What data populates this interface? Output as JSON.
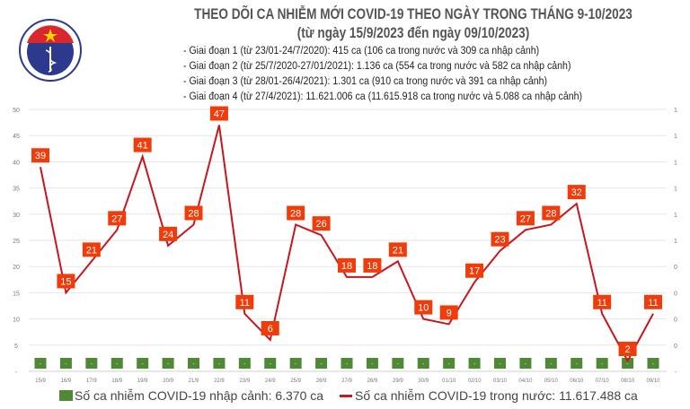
{
  "header": {
    "title": "THEO DÕI CA NHIỄM MỚI COVID-19 THEO NGÀY TRONG THÁNG 9-10/2023",
    "subtitle": "(từ ngày 15/9/2023 đến ngày 09/10/2023)",
    "notes": [
      "- Giai đoạn 1 (từ 23/01-24/7/2020): 415 ca (106 ca trong nước và 309 ca nhập cảnh)",
      "- Giai đoạn 2 (từ 25/7/2020-27/01/2021): 1.136 ca (554 ca trong nước và 582 ca nhập cảnh)",
      "- Giai đoạn 3 (từ 28/01-26/4/2021): 1.301 ca (910 ca trong nước và 391 ca nhập cảnh)",
      "- Giai đoạn 4 (từ 27/4/2021): 11.621.006 ca (11.615.918 ca trong nước và 5.088 ca nhập cảnh)"
    ],
    "logo_text": [
      "BỘ Y TẾ",
      "MINISTRY OF HEALTH"
    ]
  },
  "chart_data": {
    "type": "bar+line",
    "categories": [
      "15/9",
      "16/9",
      "17/9",
      "18/9",
      "19/9",
      "20/9",
      "21/9",
      "22/9",
      "23/9",
      "24/9",
      "25/9",
      "26/9",
      "27/9",
      "28/9",
      "29/9",
      "30/9",
      "01/10",
      "02/10",
      "03/10",
      "04/10",
      "05/10",
      "06/10",
      "07/10",
      "08/10",
      "09/10"
    ],
    "series": [
      {
        "name": "Số ca nhiễm COVID-19 nhập cảnh: 6.370 ca",
        "type": "bar",
        "axis": "right",
        "values": [
          0,
          0,
          0,
          0,
          0,
          0,
          0,
          0,
          0,
          0,
          0,
          0,
          0,
          0,
          0,
          0,
          0,
          0,
          0,
          0,
          0,
          0,
          0,
          0,
          0
        ],
        "data_label": "-",
        "color": "#4e8a33"
      },
      {
        "name": "Số ca nhiễm COVID-19 trong nước: 11.617.488 ca",
        "type": "line",
        "axis": "left",
        "values": [
          39,
          15,
          21,
          27,
          41,
          24,
          28,
          47,
          11,
          6,
          28,
          26,
          18,
          18,
          21,
          10,
          9,
          17,
          23,
          27,
          28,
          32,
          11,
          2,
          11
        ],
        "color": "#c8161d",
        "label_color": "#f03c0a"
      }
    ],
    "y_left": {
      "ylim": [
        0,
        50
      ],
      "ticks": [
        "-",
        "5",
        "10",
        "15",
        "20",
        "25",
        "30",
        "35",
        "40",
        "45",
        "50"
      ]
    },
    "y_right": {
      "ticks": [
        "-",
        "0",
        "0",
        "0",
        "0",
        "1",
        "1",
        "1",
        "1",
        "1",
        "1"
      ]
    },
    "grid": true,
    "legend": "bottom"
  }
}
